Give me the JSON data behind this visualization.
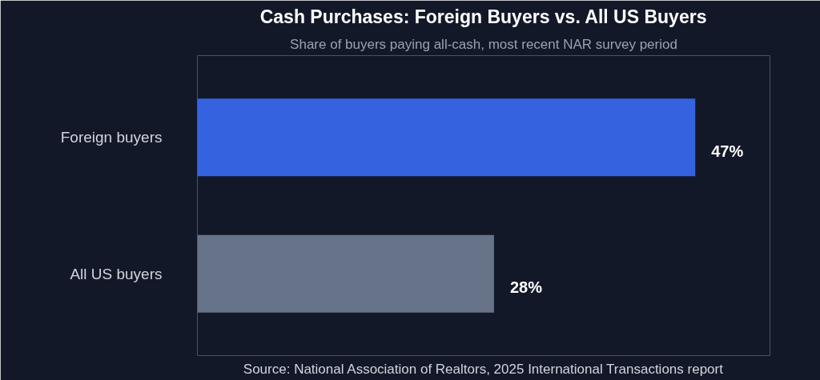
{
  "chart_data": {
    "type": "bar",
    "orientation": "horizontal",
    "title": "Cash Purchases: Foreign Buyers vs. All US Buyers",
    "subtitle": "Share of buyers paying all-cash, most recent NAR survey period",
    "categories": [
      "Foreign buyers",
      "All US buyers"
    ],
    "values": [
      47,
      28
    ],
    "colors": [
      "#3563e0",
      "#667389"
    ],
    "value_labels": [
      "47%",
      "28%"
    ],
    "grid": false,
    "annotations": [
      "Source: National Association of Realtors, 2025 International Transactions report"
    ]
  }
}
